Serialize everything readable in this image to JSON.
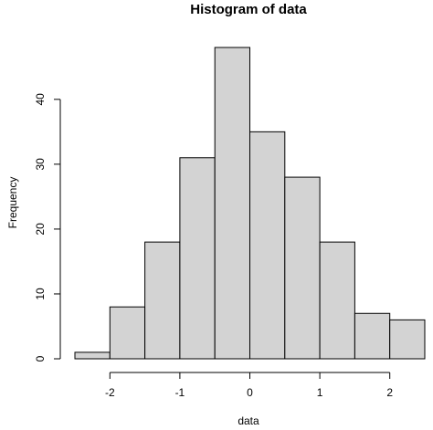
{
  "chart_data": {
    "type": "bar",
    "title": "Histogram of data",
    "xlabel": "data",
    "ylabel": "Frequency",
    "bins": [
      {
        "start": -2.5,
        "end": -2.0,
        "count": 1
      },
      {
        "start": -2.0,
        "end": -1.5,
        "count": 8
      },
      {
        "start": -1.5,
        "end": -1.0,
        "count": 18
      },
      {
        "start": -1.0,
        "end": -0.5,
        "count": 31
      },
      {
        "start": -0.5,
        "end": 0.0,
        "count": 48
      },
      {
        "start": 0.0,
        "end": 0.5,
        "count": 35
      },
      {
        "start": 0.5,
        "end": 1.0,
        "count": 28
      },
      {
        "start": 1.0,
        "end": 1.5,
        "count": 18
      },
      {
        "start": 1.5,
        "end": 2.0,
        "count": 7
      },
      {
        "start": 2.0,
        "end": 2.5,
        "count": 6
      }
    ],
    "xlim": [
      -2.5,
      2.5
    ],
    "ylim": [
      0,
      48
    ],
    "xticks": [
      -2,
      -1,
      0,
      1,
      2
    ],
    "yticks": [
      0,
      10,
      20,
      30,
      40
    ],
    "grid": false,
    "colors": {
      "bar_fill": "#d3d3d3",
      "bar_stroke": "#000000",
      "background": "#ffffff"
    }
  }
}
